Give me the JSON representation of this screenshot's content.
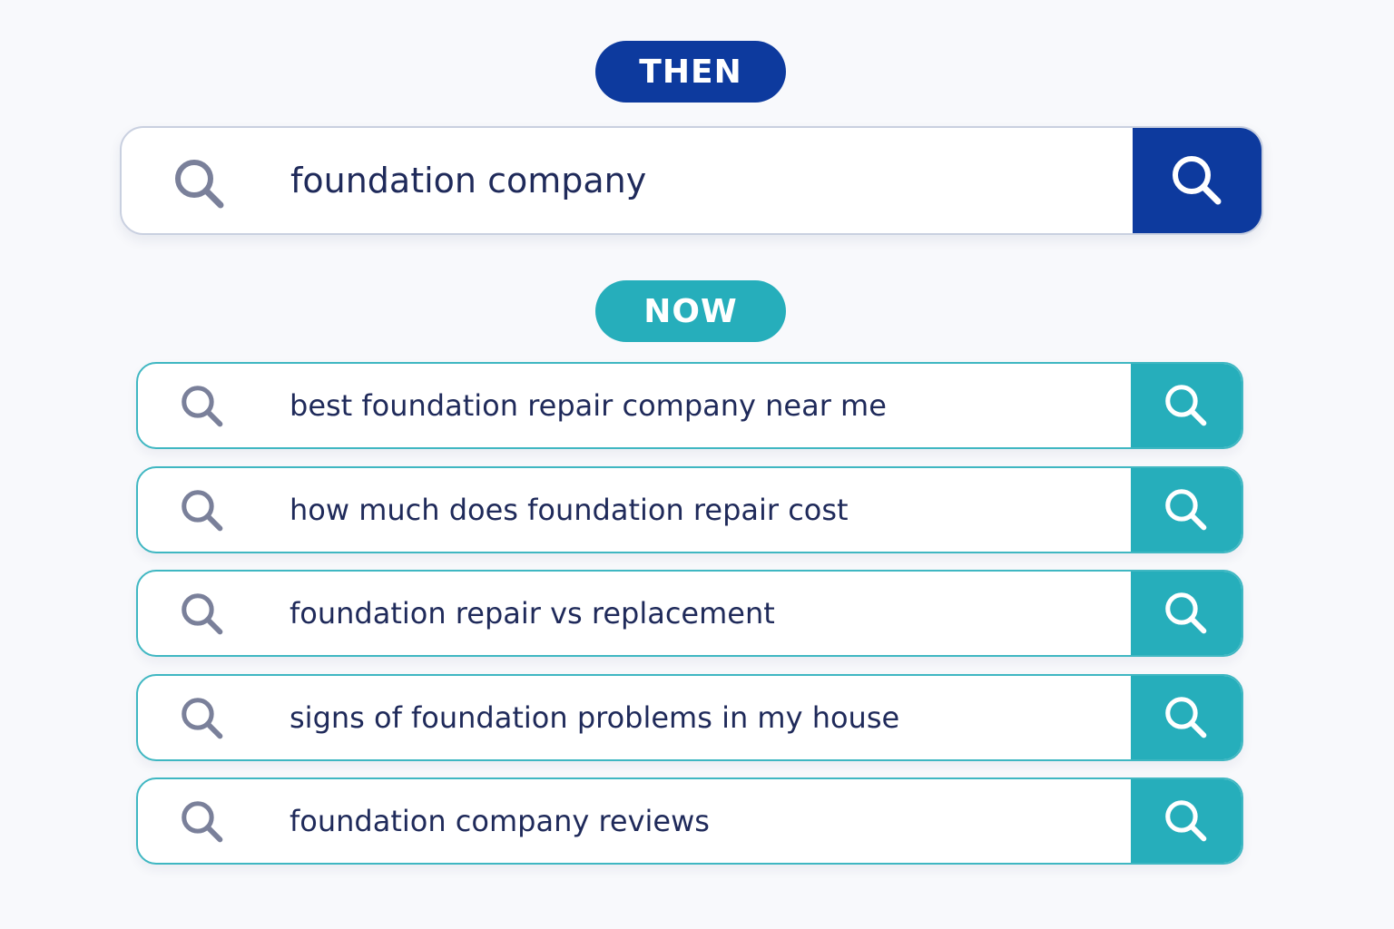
{
  "then": {
    "label": "THEN",
    "query": "foundation company"
  },
  "now": {
    "label": "NOW",
    "queries": [
      "best foundation repair company near me",
      "how much does foundation repair cost",
      "foundation repair vs replacement",
      "signs of foundation problems in my house",
      "foundation company reviews"
    ]
  }
}
